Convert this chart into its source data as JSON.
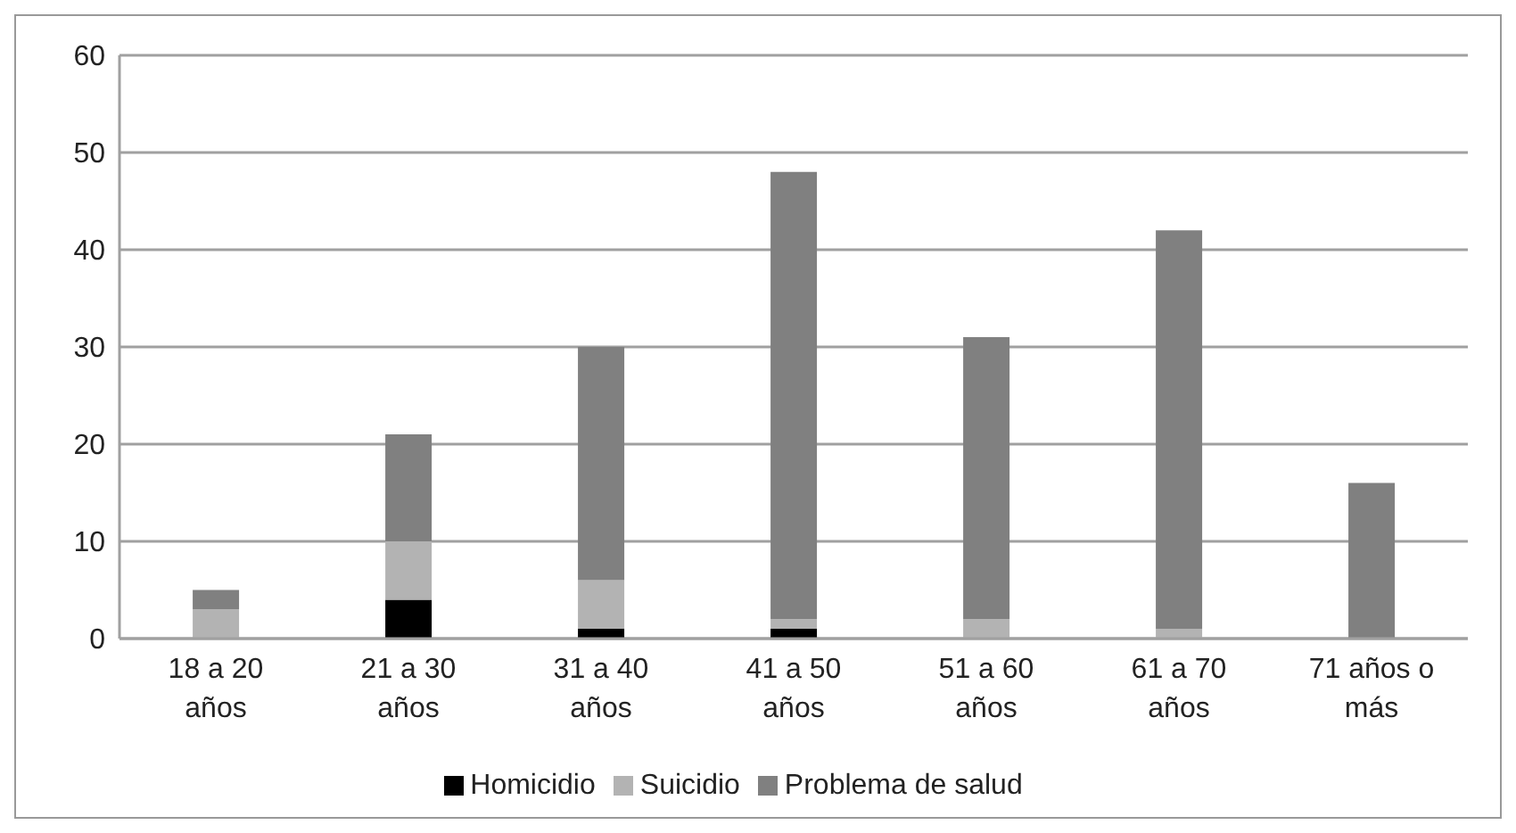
{
  "chart_data": {
    "type": "bar",
    "stacked": true,
    "categories": [
      "18 a 20 años",
      "21 a 30 años",
      "31 a 40 años",
      "41 a 50 años",
      "51 a 60 años",
      "61 a 70 años",
      "71 años o más"
    ],
    "series": [
      {
        "name": "Homicidio",
        "color": "#000000",
        "values": [
          0,
          4,
          1,
          1,
          0,
          0,
          0
        ]
      },
      {
        "name": "Suicidio",
        "color": "#b3b3b3",
        "values": [
          3,
          6,
          5,
          1,
          2,
          1,
          0
        ]
      },
      {
        "name": "Problema de salud",
        "color": "#808080",
        "values": [
          2,
          11,
          24,
          46,
          29,
          41,
          16
        ]
      }
    ],
    "ylim": [
      0,
      60
    ],
    "yticks": [
      0,
      10,
      20,
      30,
      40,
      50,
      60
    ],
    "grid": "y",
    "legend": "bottom"
  }
}
